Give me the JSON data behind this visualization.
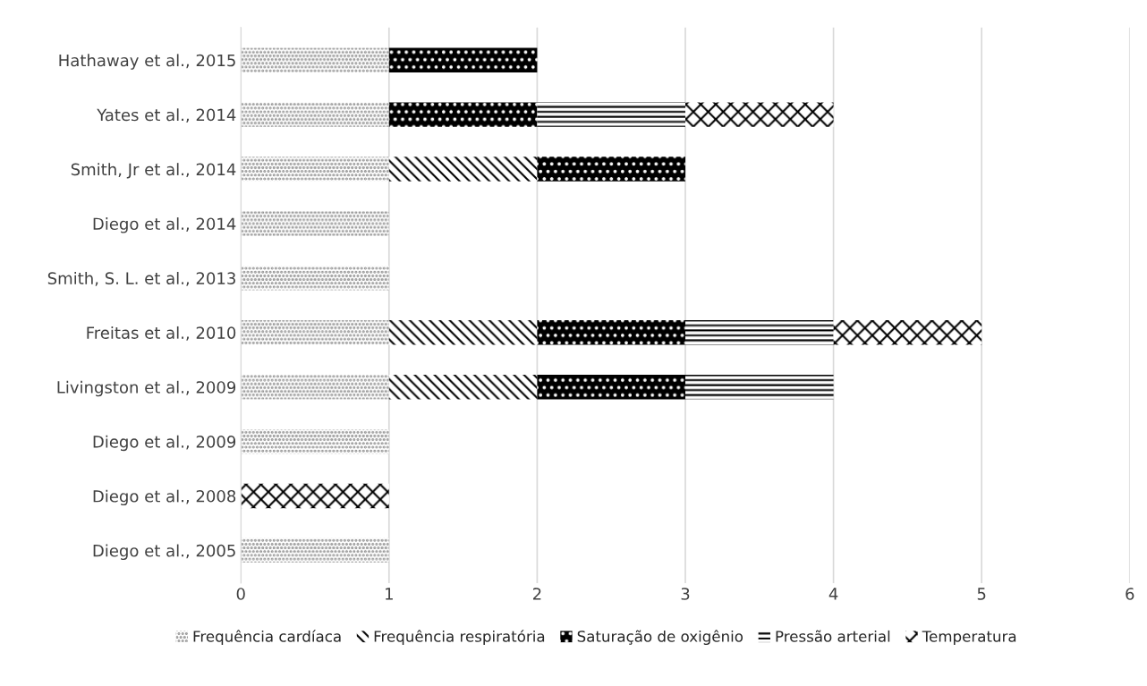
{
  "chart_data": {
    "type": "bar",
    "orientation": "horizontal",
    "stacked": true,
    "categories": [
      "Hathaway et al., 2015",
      "Yates et al., 2014",
      "Smith, Jr et al., 2014",
      "Diego et al., 2014",
      "Smith, S. L. et al., 2013",
      "Freitas et al., 2010",
      "Livingston et al., 2009",
      "Diego et al., 2009",
      "Diego et al., 2008",
      "Diego et al., 2005"
    ],
    "series": [
      {
        "name": "Frequência cardíaca",
        "color": "#808080",
        "values": [
          1,
          1,
          1,
          1,
          1,
          1,
          1,
          1,
          null,
          1
        ]
      },
      {
        "name": "Frequência respiratória",
        "color": "#000000",
        "values": [
          null,
          null,
          1,
          null,
          null,
          1,
          1,
          null,
          null,
          null
        ]
      },
      {
        "name": "Saturação de oxigênio",
        "color": "#000000",
        "values": [
          1,
          1,
          1,
          null,
          null,
          1,
          1,
          null,
          null,
          null
        ]
      },
      {
        "name": "Pressão arterial",
        "color": "#000000",
        "values": [
          null,
          1,
          null,
          null,
          null,
          1,
          1,
          null,
          null,
          null
        ]
      },
      {
        "name": "Temperatura",
        "color": "#000000",
        "values": [
          null,
          1,
          null,
          null,
          null,
          1,
          null,
          null,
          1,
          null
        ]
      }
    ],
    "xlim": [
      0,
      6
    ],
    "xticks": [
      0,
      1,
      2,
      3,
      4,
      5,
      6
    ],
    "grid": "x",
    "legend": "bottom"
  }
}
